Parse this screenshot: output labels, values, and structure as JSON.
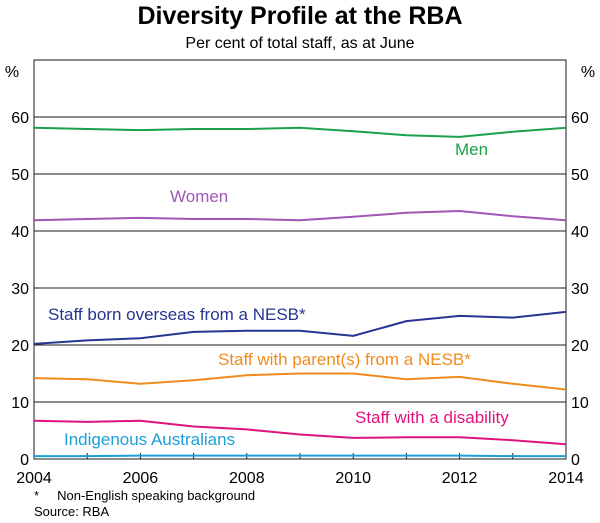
{
  "chart_data": {
    "type": "line",
    "title": "Diversity Profile at the RBA",
    "subtitle": "Per cent of total staff, as at June",
    "y_unit_left": "%",
    "y_unit_right": "%",
    "xlim": [
      2004,
      2014
    ],
    "ylim": [
      0,
      70
    ],
    "x_ticks": [
      "2004",
      "2006",
      "2008",
      "2010",
      "2012",
      "2014"
    ],
    "y_ticks": [
      "0",
      "10",
      "20",
      "30",
      "40",
      "50",
      "60"
    ],
    "grid": true,
    "x": [
      2004,
      2005,
      2006,
      2007,
      2008,
      2009,
      2010,
      2011,
      2012,
      2013,
      2014
    ],
    "series": [
      {
        "name": "Men",
        "color": "#19a24a",
        "values": [
          58.1,
          57.9,
          57.7,
          57.9,
          57.9,
          58.1,
          57.5,
          56.8,
          56.5,
          57.4,
          58.1
        ]
      },
      {
        "name": "Women",
        "color": "#a256b5",
        "values": [
          41.9,
          42.1,
          42.3,
          42.1,
          42.1,
          41.9,
          42.5,
          43.2,
          43.5,
          42.6,
          41.9
        ]
      },
      {
        "name": "Staff born overseas from a NESB*",
        "color": "#263591",
        "values": [
          20.2,
          20.8,
          21.2,
          22.3,
          22.5,
          22.5,
          21.6,
          24.2,
          25.1,
          24.8,
          25.8
        ]
      },
      {
        "name": "Staff with parent(s) from a NESB*",
        "color": "#f08c1e",
        "values": [
          14.2,
          14.0,
          13.2,
          13.8,
          14.7,
          15.0,
          15.0,
          14.0,
          14.4,
          13.2,
          12.2
        ]
      },
      {
        "name": "Staff with a disability",
        "color": "#e0147c",
        "values": [
          6.7,
          6.5,
          6.7,
          5.7,
          5.2,
          4.3,
          3.7,
          3.8,
          3.8,
          3.3,
          2.6
        ]
      },
      {
        "name": "Indigenous Australians",
        "color": "#1a9fd9",
        "values": [
          0.5,
          0.5,
          0.6,
          0.6,
          0.6,
          0.6,
          0.6,
          0.6,
          0.6,
          0.5,
          0.5
        ]
      }
    ],
    "footnote": "*     Non-English speaking background",
    "source": "Source: RBA"
  }
}
